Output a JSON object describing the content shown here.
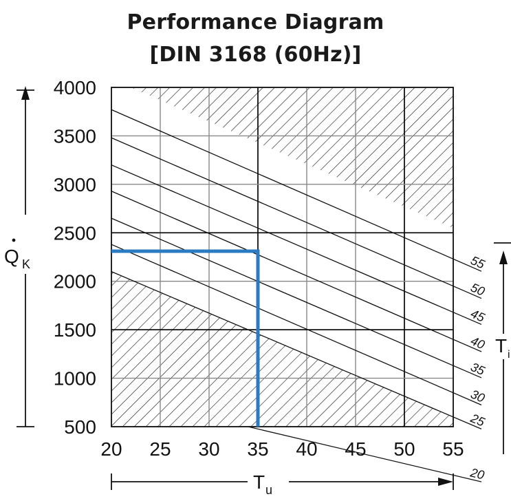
{
  "chart_data": {
    "type": "line",
    "title": [
      "Performance Diagram",
      "[DIN 3168 (60Hz)]"
    ],
    "x": {
      "label": "T",
      "label_subscript": "u",
      "range": [
        20,
        55
      ],
      "ticks": [
        20,
        25,
        30,
        35,
        40,
        45,
        50,
        55
      ],
      "tick_labels": [
        "20",
        "25",
        "30",
        "35",
        "40",
        "45",
        "50",
        "55"
      ]
    },
    "y": {
      "label": "Q",
      "label_subscript": "K",
      "label_has_dot": true,
      "range": [
        500,
        4000
      ],
      "ticks": [
        500,
        1000,
        1500,
        2000,
        2500,
        3000,
        3500,
        4000
      ],
      "tick_labels": [
        "500",
        "1000",
        "1500",
        "2000",
        "2500",
        "3000",
        "3500",
        "4000"
      ]
    },
    "grid": true,
    "right_axis": {
      "label": "T",
      "label_subscript": "i",
      "arrow": "up"
    },
    "lines_label_side": "right",
    "series": [
      {
        "name": "20",
        "points": [
          [
            34.0,
            500
          ],
          [
            55,
            0
          ]
        ]
      },
      {
        "name": "25",
        "points": [
          [
            20,
            2100
          ],
          [
            55,
            600
          ]
        ]
      },
      {
        "name": "30",
        "points": [
          [
            20,
            2380
          ],
          [
            55,
            850
          ]
        ]
      },
      {
        "name": "35",
        "points": [
          [
            20,
            2650
          ],
          [
            55,
            1130
          ]
        ]
      },
      {
        "name": "40",
        "points": [
          [
            20,
            2930
          ],
          [
            55,
            1400
          ]
        ]
      },
      {
        "name": "45",
        "points": [
          [
            20,
            3200
          ],
          [
            55,
            1680
          ]
        ]
      },
      {
        "name": "50",
        "points": [
          [
            20,
            3480
          ],
          [
            55,
            1950
          ]
        ]
      },
      {
        "name": "55",
        "points": [
          [
            20,
            3770
          ],
          [
            55,
            2230
          ]
        ]
      }
    ],
    "hatched_regions": [
      {
        "boundary": "upper",
        "description_points": [
          [
            22,
            4000
          ],
          [
            55,
            2550
          ]
        ]
      },
      {
        "boundary": "lower",
        "description_points": [
          [
            20,
            2100
          ],
          [
            55,
            600
          ]
        ]
      }
    ],
    "highlight": {
      "color": "#2a7bbf",
      "x": 35,
      "y": 2310
    }
  }
}
